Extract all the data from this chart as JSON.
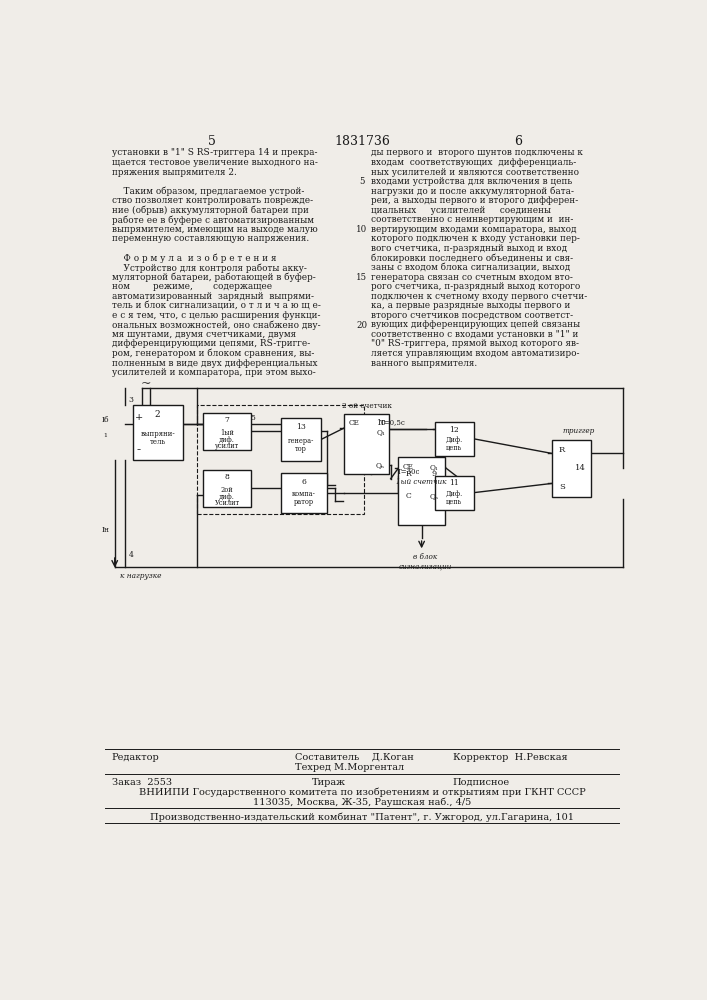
{
  "page_num_left": "5",
  "page_num_center": "1831736",
  "page_num_right": "6",
  "bg_color": "#f0ede8",
  "text_color": "#1a1a1a",
  "col1_text": [
    "установки в \"1\" S RS-триггера 14 и прекра-",
    "щается тестовое увеличение выходного на-",
    "пряжения выпрямителя 2.",
    "",
    "    Таким образом, предлагаемое устрой-",
    "ство позволяет контролировать поврежде-",
    "ние (обрыв) аккумуляторной батареи при",
    "работе ее в буфере с автоматизированным",
    "выпрямителем, имеющим на выходе малую",
    "переменную составляющую напряжения.",
    "",
    "    Ф о р м у л а  и з о б р е т е н и я",
    "    Устройство для контроля работы акку-",
    "муляторной батареи, работающей в буфер-",
    "ном        режиме,       содержащее",
    "автоматизированный  зарядный  выпрями-",
    "тель и блок сигнализации, о т л и ч а ю щ е-",
    "е с я тем, что, с целью расширения функци-",
    "ональных возможностей, оно снабжено дву-",
    "мя шунтами, двумя счетчиками, двумя",
    "дифференцирующими цепями, RS-тригге-",
    "ром, генератором и блоком сравнения, вы-",
    "полненным в виде двух дифференциальных",
    "усилителей и компаратора, при этом выхо-"
  ],
  "col2_text": [
    "ды первого и  второго шунтов подключены к",
    "входам  соответствующих  дифференциаль-",
    "ных усилителей и являются соответственно",
    "входами устройства для включения в цепь",
    "нагрузки до и после аккумуляторной бата-",
    "реи, а выходы первого и второго дифферен-",
    "циальных     усилителей     соединены",
    "соответственно с неинвертирующим и  ин-",
    "вертирующим входами компаратора, выход",
    "которого подключен к входу установки пер-",
    "вого счетчика, п-разрядный выход и вход",
    "блокировки последнего объединены и свя-",
    "заны с входом блока сигнализации, выход",
    "генератора связан со счетным входом вто-",
    "рого счетчика, п-разрядный выход которого",
    "подключен к счетному входу первого счетчи-",
    "ка, а первые разрядные выходы первого и",
    "второго счетчиков посредством соответст-",
    "вующих дифференцирующих цепей связаны",
    "соответственно с входами установки в \"1\" и",
    "\"0\" RS-триггера, прямой выход которого яв-",
    "ляется управляющим входом автоматизиро-",
    "ванного выпрямителя."
  ],
  "footer_line1_left": "Редактор",
  "footer_line1_center1": "Составитель",
  "footer_line1_center2": "Д.Коган",
  "footer_line2_center": "Техред М.Моргентал",
  "footer_line2_right": "Корректор  Н.Ревская",
  "footer_line3_left": "Заказ  2553",
  "footer_line3_center": "Тираж",
  "footer_line3_right": "Подписное",
  "footer_line4": "ВНИИПИ Государственного комитета по изобретениям и открытиям при ГКНТ СССР",
  "footer_line5": "113035, Москва, Ж-35, Раушская наб., 4/5",
  "footer_line6": "Производственно-издательский комбинат \"Патент\", г. Ужгород, ул.Гагарина, 101"
}
